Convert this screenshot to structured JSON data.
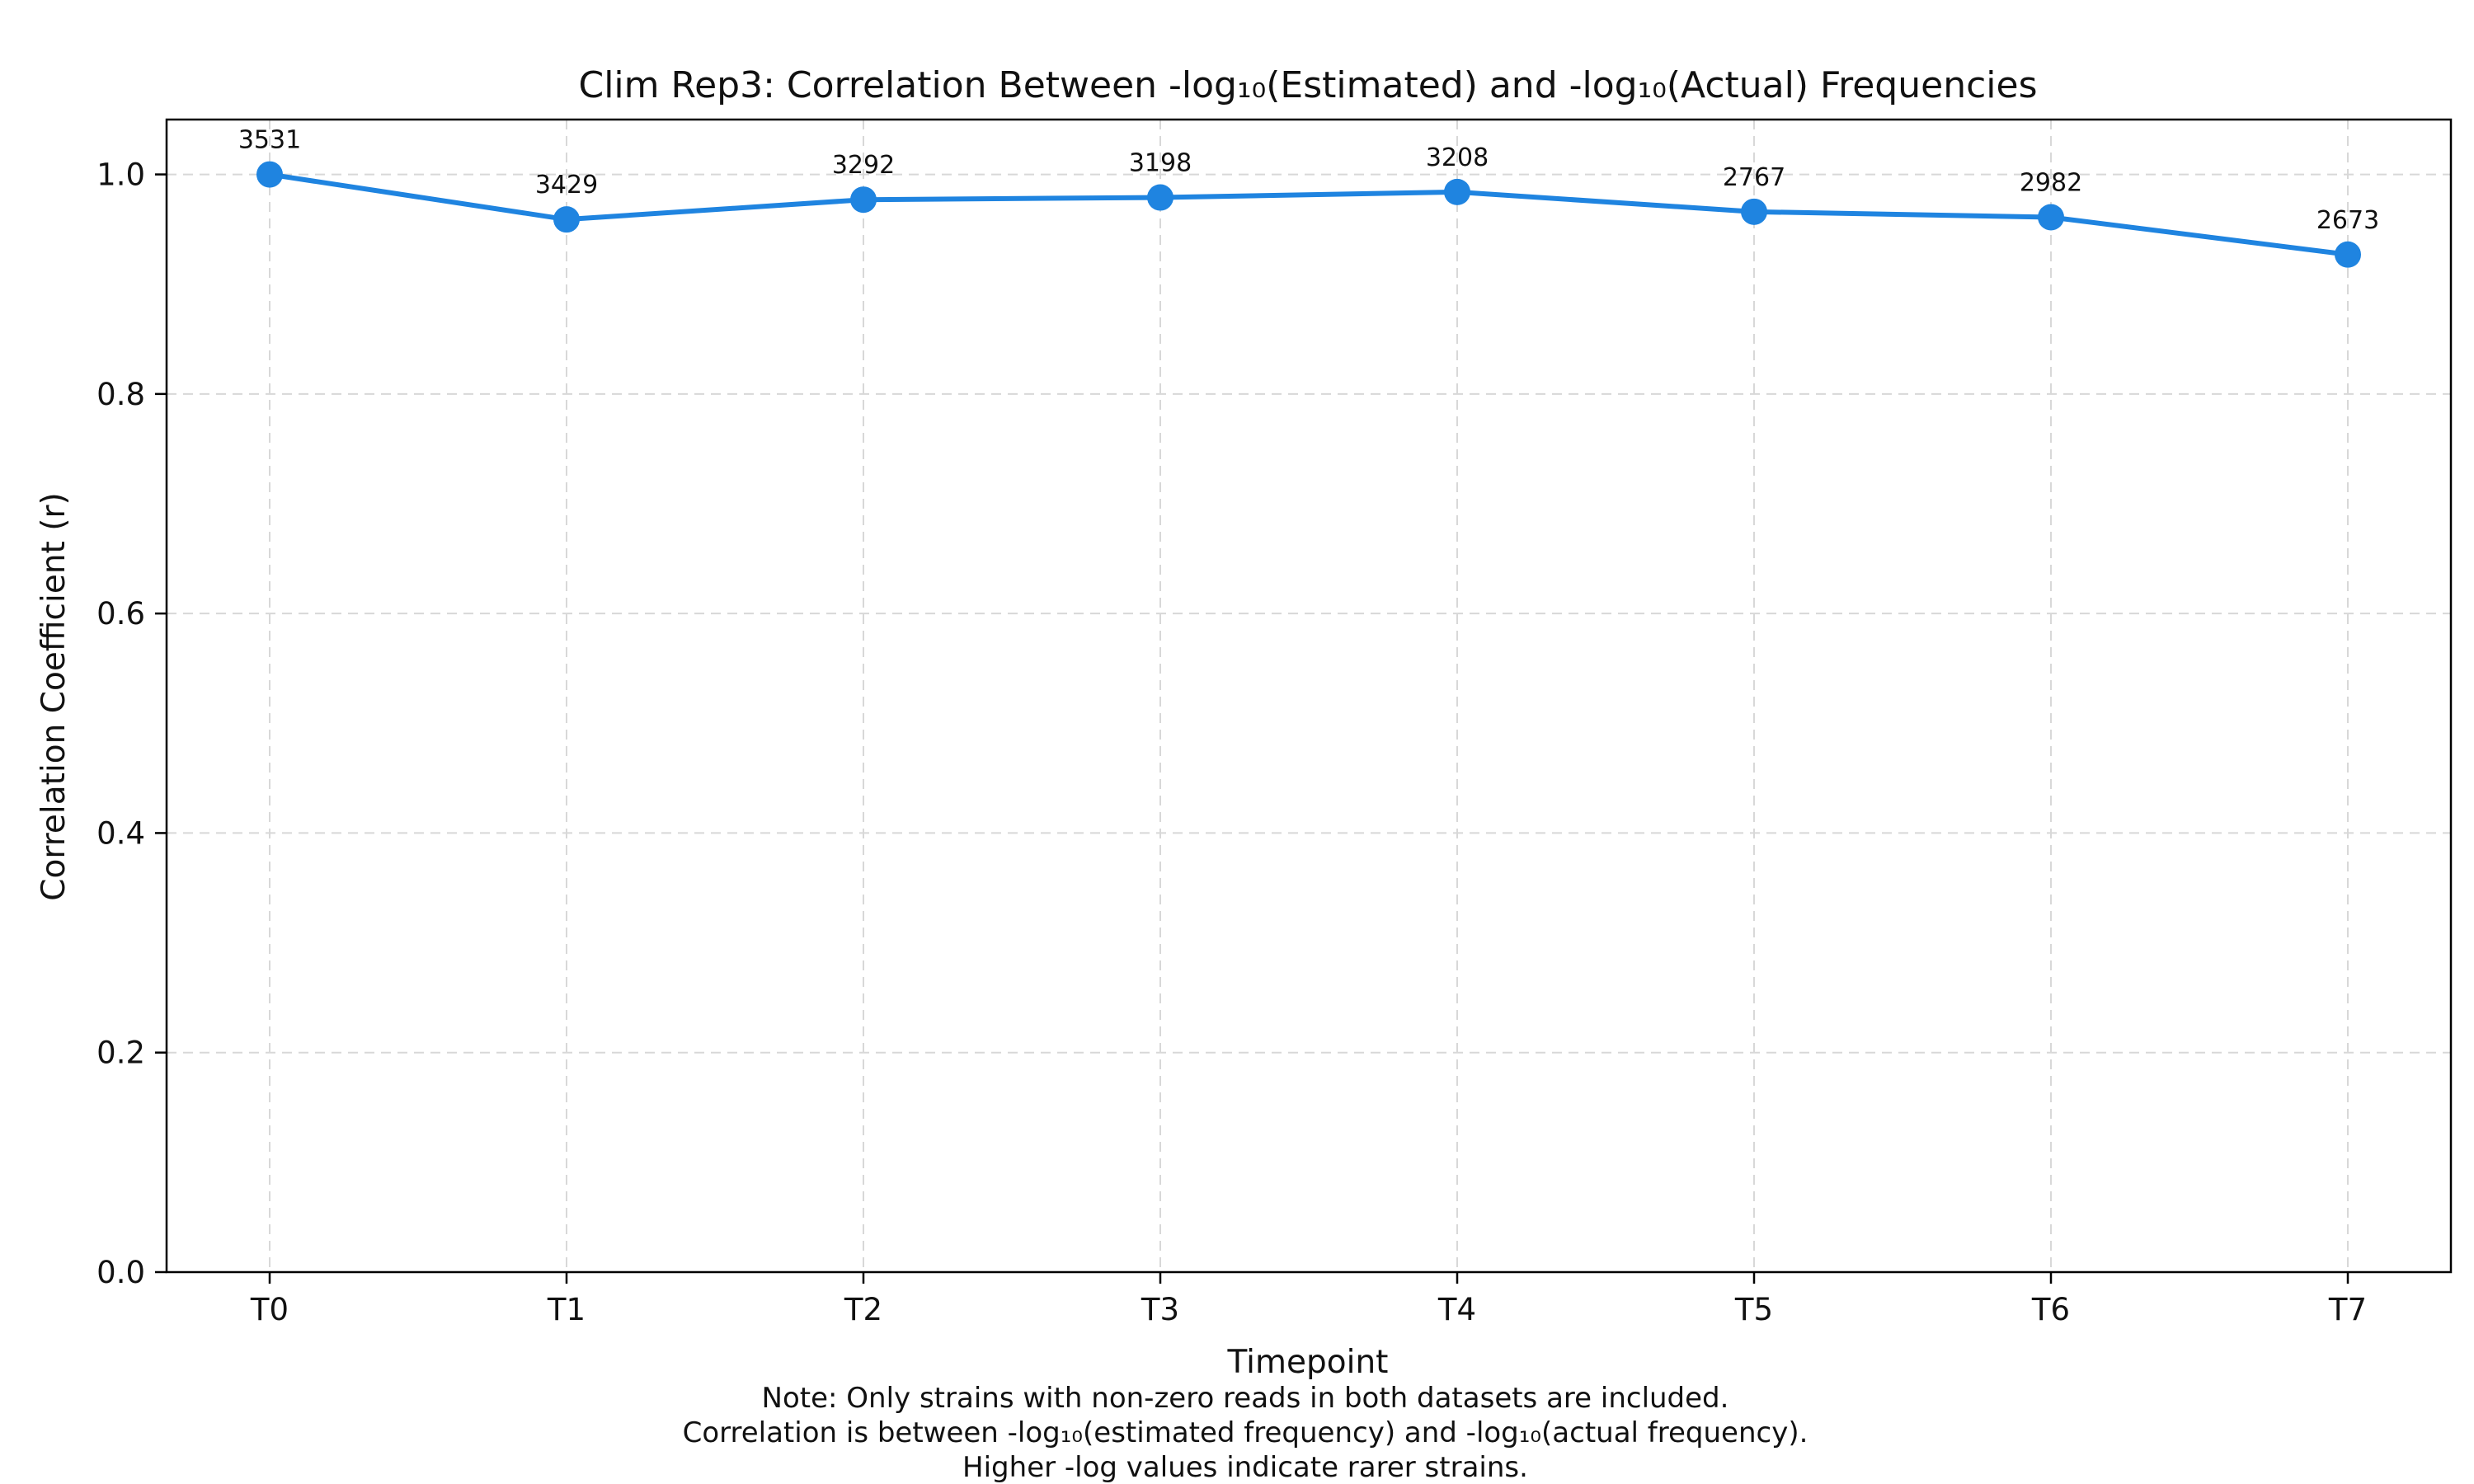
{
  "chart_data": {
    "type": "line",
    "title": "Clim Rep3: Correlation Between -log₁₀(Estimated) and -log₁₀(Actual) Frequencies",
    "xlabel": "Timepoint",
    "ylabel": "Correlation Coefficient (r)",
    "categories": [
      "T0",
      "T1",
      "T2",
      "T3",
      "T4",
      "T5",
      "T6",
      "T7"
    ],
    "series": [
      {
        "values": [
          1.0,
          0.959,
          0.977,
          0.979,
          0.984,
          0.966,
          0.961,
          0.927
        ],
        "point_labels": [
          "3531",
          "3429",
          "3292",
          "3198",
          "3208",
          "2767",
          "2982",
          "2673"
        ],
        "color": "#1f84e0"
      }
    ],
    "ylim": [
      0,
      1.05
    ],
    "yticks": [
      "0.0",
      "0.2",
      "0.4",
      "0.6",
      "0.8",
      "1.0"
    ],
    "grid": true,
    "notes": [
      "Note: Only strains with non-zero reads in both datasets are included.",
      "Correlation is between -log₁₀(estimated frequency) and -log₁₀(actual frequency).",
      "Higher -log values indicate rarer strains."
    ]
  }
}
